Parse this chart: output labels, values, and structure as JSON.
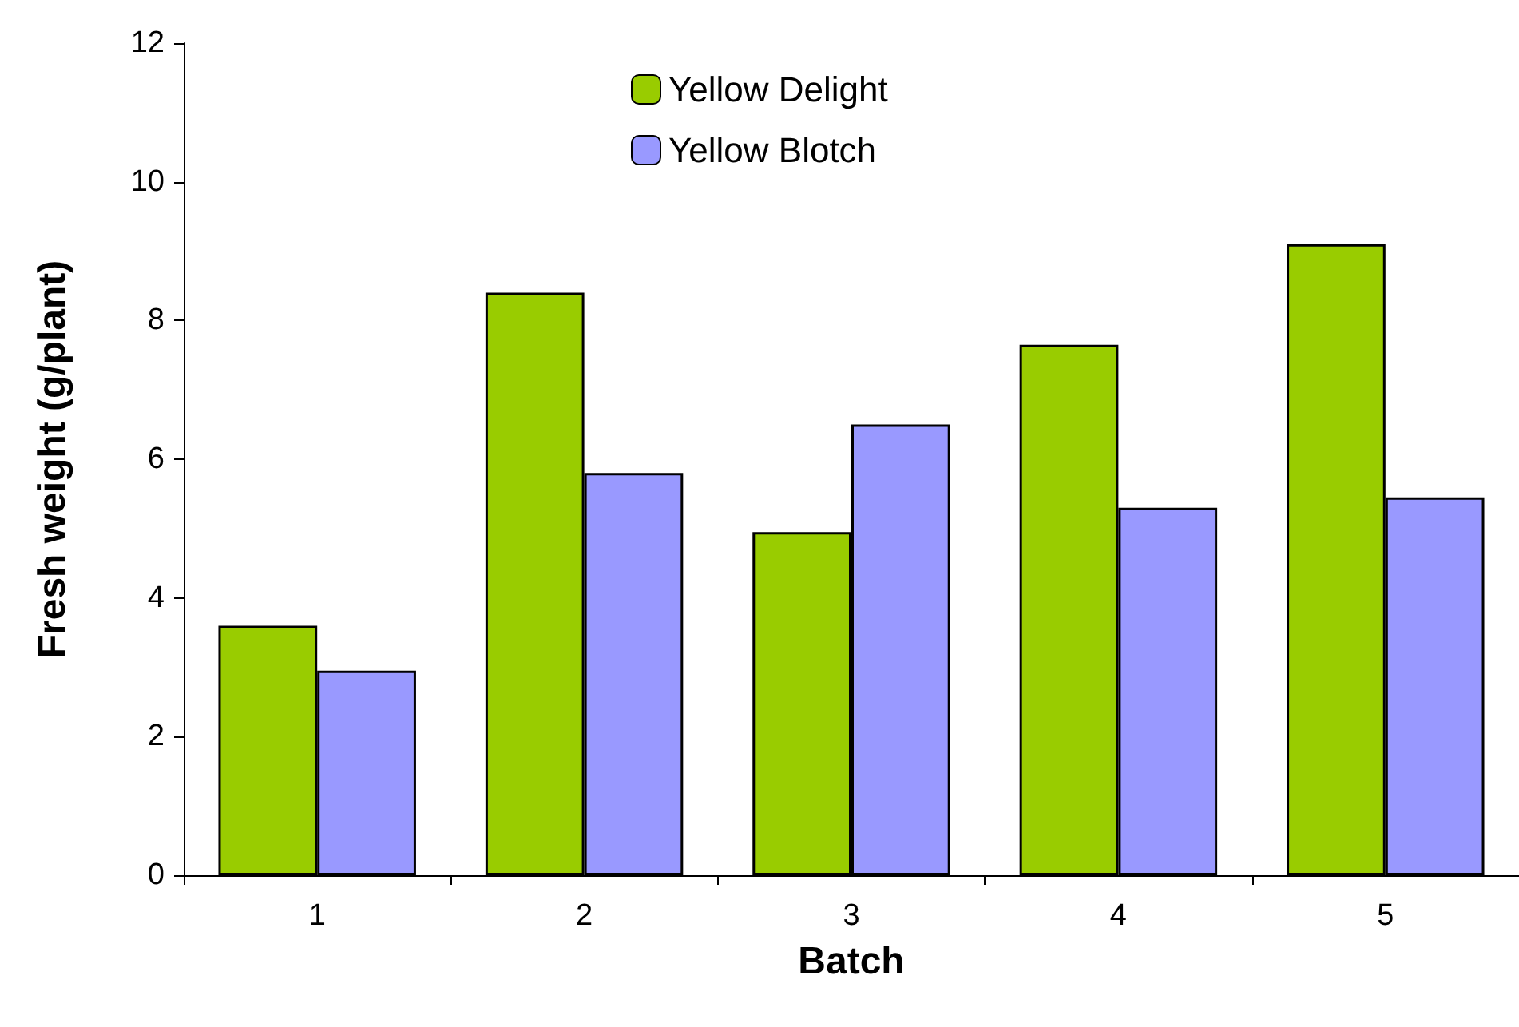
{
  "chart_data": {
    "type": "bar",
    "xlabel": "Batch",
    "ylabel": "Fresh weight (g/plant)",
    "categories": [
      "1",
      "2",
      "3",
      "4",
      "5"
    ],
    "series": [
      {
        "name": "Yellow Delight",
        "color": "#99cc00",
        "values": [
          3.6,
          8.4,
          4.95,
          7.65,
          9.1
        ]
      },
      {
        "name": "Yellow Blotch",
        "color": "#9999ff",
        "values": [
          2.95,
          5.8,
          6.5,
          5.3,
          5.45
        ]
      }
    ],
    "ylim": [
      0,
      12
    ],
    "yticks": [
      0,
      2,
      4,
      6,
      8,
      10,
      12
    ],
    "grid": false,
    "legend": "top"
  }
}
